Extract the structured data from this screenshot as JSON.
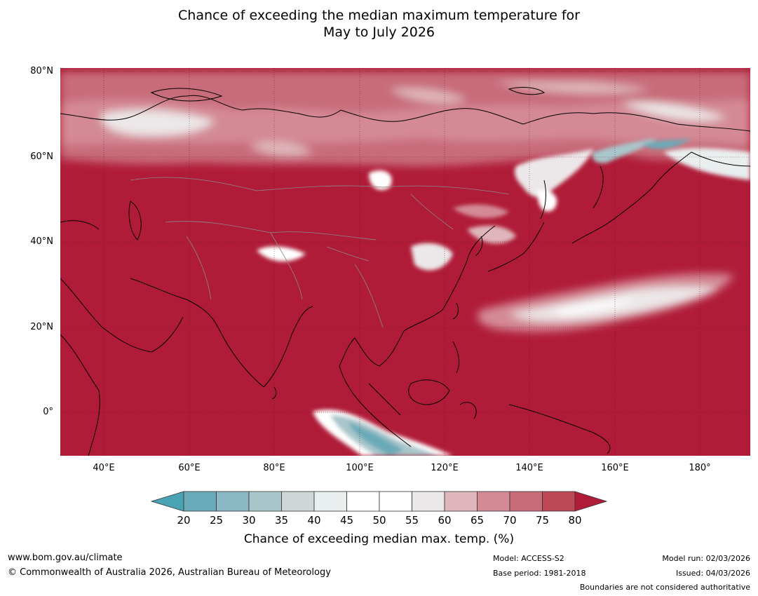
{
  "title": {
    "line1": "Chance of exceeding the median maximum temperature for",
    "line2": "May to July 2026"
  },
  "map": {
    "region": "Asia",
    "lat_labels": [
      "80°N",
      "60°N",
      "40°N",
      "20°N",
      "0°"
    ],
    "lon_labels": [
      "40°E",
      "60°E",
      "80°E",
      "100°E",
      "120°E",
      "140°E",
      "160°E",
      "180°"
    ]
  },
  "colorbar": {
    "ticks": [
      "20",
      "25",
      "30",
      "35",
      "40",
      "45",
      "50",
      "55",
      "60",
      "65",
      "70",
      "75",
      "80"
    ],
    "colors": [
      "#6aaab8",
      "#8ab8c4",
      "#a9c6cb",
      "#cfd6d8",
      "#e9eeef",
      "#ffffff",
      "#ffffff",
      "#ece7e8",
      "#dfb6bb",
      "#d48a95",
      "#c86c79",
      "#bd4856"
    ],
    "under_color": "#4aa3b2",
    "over_color": "#b01c38",
    "label": "Chance of exceeding median max. temp. (%)"
  },
  "footer": {
    "website": "www.bom.gov.au/climate",
    "copyright": "© Commonwealth of Australia 2026, Australian Bureau of Meteorology",
    "model": "Model: ACCESS-S2",
    "base_period": "Base period: 1981-2018",
    "model_run": "Model run: 02/03/2026",
    "issued": "Issued: 04/03/2026",
    "disclaimer": "Boundaries are not considered authoritative"
  }
}
